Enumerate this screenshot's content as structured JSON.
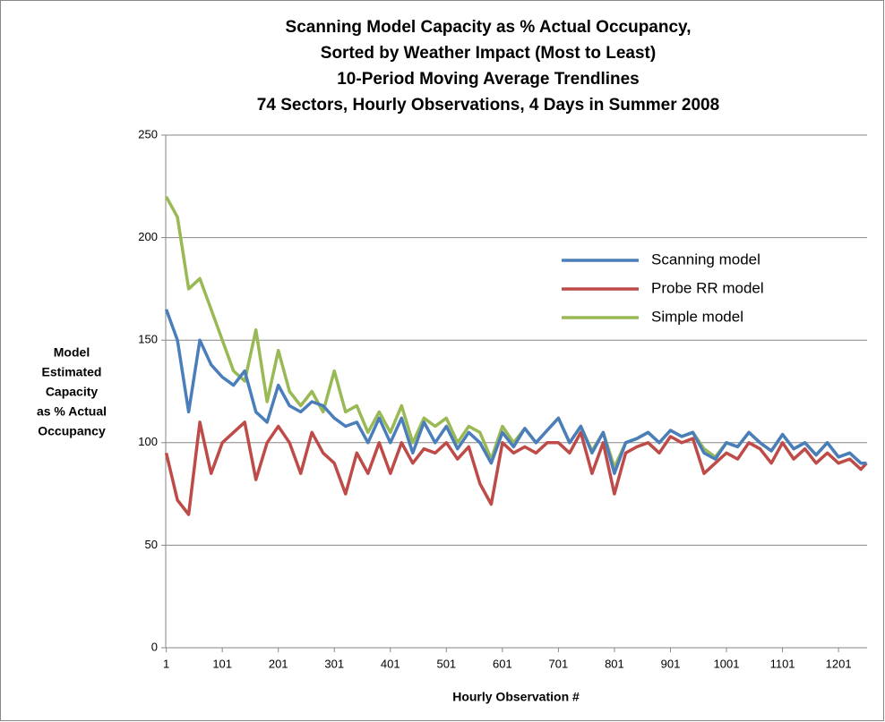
{
  "chart_data": {
    "type": "line",
    "title": [
      "Scanning Model Capacity as % Actual Occupancy,",
      "Sorted by Weather Impact (Most to Least)",
      "10-Period Moving Average Trendlines",
      "74 Sectors, Hourly Observations, 4 Days in Summer 2008"
    ],
    "x_label": "Hourly Observation #",
    "y_label": [
      "Model",
      "Estimated",
      "Capacity",
      "as % Actual",
      "Occupancy"
    ],
    "x": [
      1,
      21,
      41,
      61,
      81,
      101,
      121,
      141,
      161,
      181,
      201,
      221,
      241,
      261,
      281,
      301,
      321,
      341,
      361,
      381,
      401,
      421,
      441,
      461,
      481,
      501,
      521,
      541,
      561,
      581,
      601,
      621,
      641,
      661,
      681,
      701,
      721,
      741,
      761,
      781,
      801,
      821,
      841,
      861,
      881,
      901,
      921,
      941,
      961,
      981,
      1001,
      1021,
      1041,
      1061,
      1081,
      1101,
      1121,
      1141,
      1161,
      1181,
      1201,
      1221,
      1241,
      1251
    ],
    "series": [
      {
        "name": "Scanning model",
        "color": "#4a7ebb",
        "values": [
          165,
          150,
          115,
          150,
          138,
          132,
          128,
          135,
          115,
          110,
          128,
          118,
          115,
          120,
          118,
          112,
          108,
          110,
          100,
          112,
          100,
          112,
          95,
          110,
          100,
          108,
          97,
          105,
          100,
          90,
          105,
          98,
          107,
          100,
          106,
          112,
          100,
          108,
          95,
          105,
          85,
          100,
          102,
          105,
          100,
          106,
          103,
          105,
          95,
          92,
          100,
          98,
          105,
          100,
          96,
          104,
          97,
          100,
          94,
          100,
          93,
          95,
          90,
          90
        ]
      },
      {
        "name": "Probe RR model",
        "color": "#be4b48",
        "values": [
          95,
          72,
          65,
          110,
          85,
          100,
          105,
          110,
          82,
          100,
          108,
          100,
          85,
          105,
          95,
          90,
          75,
          95,
          85,
          100,
          85,
          100,
          90,
          97,
          95,
          100,
          92,
          98,
          80,
          70,
          100,
          95,
          98,
          95,
          100,
          100,
          95,
          105,
          85,
          100,
          75,
          95,
          98,
          100,
          95,
          103,
          100,
          102,
          85,
          90,
          95,
          92,
          100,
          97,
          90,
          100,
          92,
          97,
          90,
          95,
          90,
          92,
          87,
          90
        ]
      },
      {
        "name": "Simple model",
        "color": "#98b954",
        "values": [
          220,
          210,
          175,
          180,
          165,
          150,
          135,
          130,
          155,
          120,
          145,
          125,
          118,
          125,
          115,
          135,
          115,
          118,
          105,
          115,
          105,
          118,
          100,
          112,
          108,
          112,
          100,
          108,
          105,
          92,
          108,
          100,
          107,
          100,
          106,
          112,
          100,
          108,
          96,
          105,
          88,
          100,
          102,
          105,
          100,
          106,
          103,
          105,
          97,
          93,
          100,
          98,
          105,
          100,
          96,
          104,
          97,
          100,
          94,
          100,
          93,
          95,
          90,
          90
        ]
      }
    ],
    "xlim": [
      0,
      1252
    ],
    "ylim": [
      0,
      250
    ],
    "xticks": [
      1,
      101,
      201,
      301,
      401,
      501,
      601,
      701,
      801,
      901,
      1001,
      1101,
      1201
    ],
    "yticks": [
      0,
      50,
      100,
      150,
      200,
      250
    ],
    "grid": true,
    "legend": "right"
  }
}
